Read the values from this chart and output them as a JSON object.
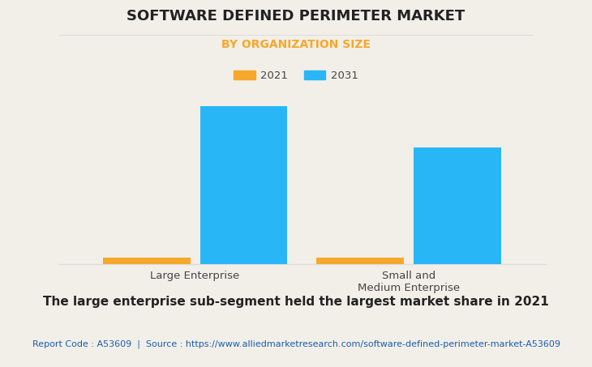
{
  "title": "SOFTWARE DEFINED PERIMETER MARKET",
  "subtitle": "BY ORGANIZATION SIZE",
  "categories": [
    "Large Enterprise",
    "Small and\nMedium Enterprise"
  ],
  "values_2021": [
    0.42,
    0.38
  ],
  "values_2031": [
    9.5,
    7.0
  ],
  "color_2021": "#F5A82A",
  "color_2031": "#29B6F6",
  "legend_labels": [
    "2021",
    "2031"
  ],
  "footnote": "The large enterprise sub-segment held the largest market share in 2021",
  "source_text": "Report Code : A53609  |  Source : https://www.alliedmarketresearch.com/software-defined-perimeter-market-A53609",
  "background_color": "#F2EFE9",
  "plot_background_color": "#F2EFE9",
  "title_fontsize": 13,
  "subtitle_fontsize": 10,
  "footnote_fontsize": 11,
  "source_fontsize": 8,
  "ylim": [
    0,
    11
  ],
  "bar_width": 0.18,
  "grid_color": "#DDDDDD",
  "subtitle_color": "#F5A82A",
  "source_color": "#1A5DAD"
}
